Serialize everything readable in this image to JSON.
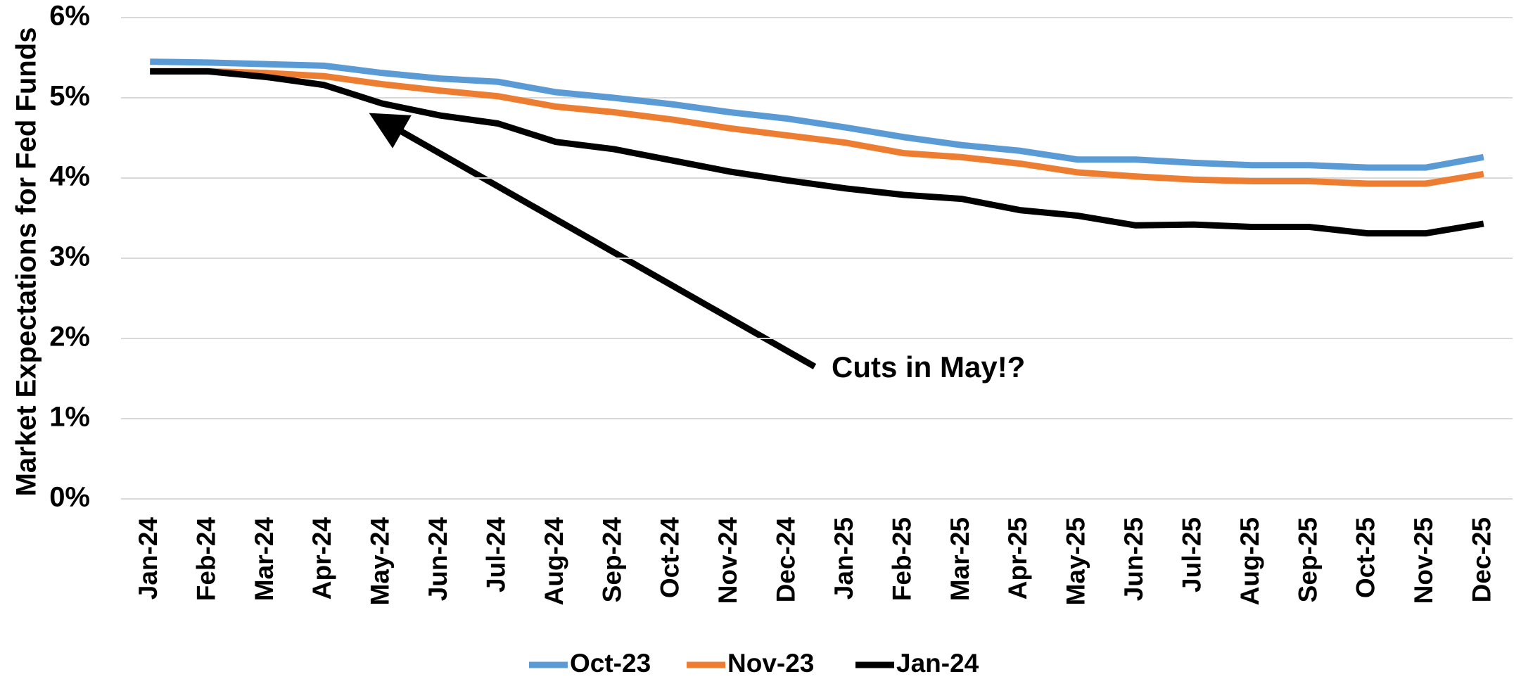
{
  "chart_data": {
    "type": "line",
    "y_label": "Market Expectations for Fed Funds",
    "annotation": "Cuts in May!?",
    "categories": [
      "Jan-24",
      "Feb-24",
      "Mar-24",
      "Apr-24",
      "May-24",
      "Jun-24",
      "Jul-24",
      "Aug-24",
      "Sep-24",
      "Oct-24",
      "Nov-24",
      "Dec-24",
      "Jan-25",
      "Feb-25",
      "Mar-25",
      "Apr-25",
      "May-25",
      "Jun-25",
      "Jul-25",
      "Aug-25",
      "Sep-25",
      "Oct-25",
      "Nov-25",
      "Dec-25"
    ],
    "series": [
      {
        "name": "Oct-23",
        "color": "#5b9bd5",
        "values": [
          5.45,
          5.44,
          5.42,
          5.4,
          5.31,
          5.24,
          5.2,
          5.07,
          5.0,
          4.92,
          4.82,
          4.74,
          4.63,
          4.51,
          4.41,
          4.34,
          4.23,
          4.23,
          4.19,
          4.16,
          4.16,
          4.13,
          4.13,
          4.26
        ]
      },
      {
        "name": "Nov-23",
        "color": "#ed7d31",
        "values": [
          5.33,
          5.33,
          5.31,
          5.27,
          5.17,
          5.09,
          5.02,
          4.89,
          4.82,
          4.73,
          4.62,
          4.53,
          4.44,
          4.31,
          4.26,
          4.18,
          4.07,
          4.02,
          3.98,
          3.96,
          3.96,
          3.93,
          3.93,
          4.05
        ]
      },
      {
        "name": "Jan-24",
        "color": "#000000",
        "values": [
          5.33,
          5.33,
          5.26,
          5.16,
          4.93,
          4.78,
          4.68,
          4.45,
          4.36,
          4.22,
          4.08,
          3.97,
          3.87,
          3.79,
          3.74,
          3.6,
          3.53,
          3.41,
          3.42,
          3.39,
          3.39,
          3.31,
          3.31,
          3.43
        ]
      }
    ],
    "ylim": [
      0,
      6
    ],
    "yticks": [
      {
        "value": 0,
        "label": "0%"
      },
      {
        "value": 1,
        "label": "1%"
      },
      {
        "value": 2,
        "label": "2%"
      },
      {
        "value": 3,
        "label": "3%"
      },
      {
        "value": 4,
        "label": "4%"
      },
      {
        "value": 5,
        "label": "5%"
      },
      {
        "value": 6,
        "label": "6%"
      }
    ],
    "grid": true,
    "legend": "bottom"
  }
}
